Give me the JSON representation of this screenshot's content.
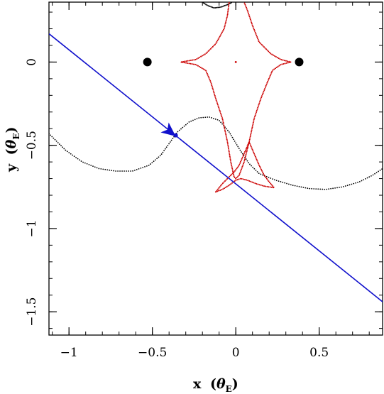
{
  "chart_data": {
    "type": "line",
    "title": "",
    "xlabel": {
      "main": "x",
      "theta": "θ",
      "sub": "E"
    },
    "ylabel": {
      "main": "y",
      "theta": "θ",
      "sub": "E"
    },
    "xlim": [
      -1.12,
      0.88
    ],
    "ylim": [
      -1.64,
      0.36
    ],
    "xticks": [
      {
        "value": -1,
        "label": "−1"
      },
      {
        "value": -0.5,
        "label": "−0.5"
      },
      {
        "value": 0,
        "label": "0"
      },
      {
        "value": 0.5,
        "label": "0.5"
      }
    ],
    "yticks": [
      {
        "value": -1.5,
        "label": "−1.5"
      },
      {
        "value": -1,
        "label": "−1"
      },
      {
        "value": -0.5,
        "label": "−0.5"
      },
      {
        "value": 0,
        "label": "0"
      }
    ],
    "x_minor_step": 0.1,
    "y_minor_step": 0.1,
    "grid": false,
    "lenses": [
      {
        "x": -0.53,
        "y": 0.0
      },
      {
        "x": 0.38,
        "y": 0.0
      }
    ],
    "caustic": {
      "color": "#cc0000",
      "central": [
        [
          -0.04,
          0.36
        ],
        [
          -0.05,
          0.28
        ],
        [
          -0.07,
          0.2
        ],
        [
          -0.12,
          0.11
        ],
        [
          -0.18,
          0.05
        ],
        [
          -0.24,
          0.015
        ],
        [
          -0.33,
          0.0
        ],
        [
          -0.24,
          -0.015
        ],
        [
          -0.18,
          -0.05
        ],
        [
          -0.15,
          -0.12
        ],
        [
          -0.12,
          -0.22
        ],
        [
          -0.08,
          -0.34
        ],
        [
          -0.05,
          -0.48
        ],
        [
          -0.03,
          -0.6
        ],
        [
          -0.01,
          -0.69
        ],
        [
          0.0,
          -0.7
        ],
        [
          0.02,
          -0.68
        ],
        [
          0.05,
          -0.6
        ],
        [
          0.08,
          -0.48
        ],
        [
          0.11,
          -0.34
        ],
        [
          0.15,
          -0.22
        ],
        [
          0.19,
          -0.12
        ],
        [
          0.22,
          -0.05
        ],
        [
          0.27,
          -0.015
        ],
        [
          0.33,
          0.0
        ],
        [
          0.27,
          0.015
        ],
        [
          0.21,
          0.05
        ],
        [
          0.14,
          0.12
        ],
        [
          0.1,
          0.22
        ],
        [
          0.07,
          0.31
        ],
        [
          0.05,
          0.36
        ]
      ],
      "lower": [
        [
          -0.12,
          -0.78
        ],
        [
          -0.08,
          -0.765
        ],
        [
          -0.04,
          -0.74
        ],
        [
          0.0,
          -0.71
        ],
        [
          0.03,
          -0.7
        ],
        [
          0.07,
          -0.71
        ],
        [
          0.12,
          -0.73
        ],
        [
          0.17,
          -0.745
        ],
        [
          0.23,
          -0.755
        ],
        [
          0.2,
          -0.72
        ],
        [
          0.17,
          -0.68
        ],
        [
          0.14,
          -0.62
        ],
        [
          0.11,
          -0.55
        ],
        [
          0.08,
          -0.48
        ],
        [
          0.05,
          -0.55
        ],
        [
          0.02,
          -0.62
        ],
        [
          -0.01,
          -0.66
        ],
        [
          -0.04,
          -0.69
        ],
        [
          -0.08,
          -0.73
        ],
        [
          -0.12,
          -0.78
        ]
      ],
      "dot": {
        "x": 0.0,
        "y": 0.0
      }
    },
    "light_curve_track": {
      "color": "#000000",
      "points": [
        [
          -1.12,
          -0.43
        ],
        [
          -1.02,
          -0.53
        ],
        [
          -0.92,
          -0.6
        ],
        [
          -0.82,
          -0.64
        ],
        [
          -0.72,
          -0.655
        ],
        [
          -0.62,
          -0.655
        ],
        [
          -0.52,
          -0.62
        ],
        [
          -0.45,
          -0.56
        ],
        [
          -0.4,
          -0.49
        ],
        [
          -0.35,
          -0.42
        ],
        [
          -0.28,
          -0.36
        ],
        [
          -0.22,
          -0.335
        ],
        [
          -0.16,
          -0.33
        ],
        [
          -0.1,
          -0.35
        ],
        [
          -0.04,
          -0.42
        ],
        [
          0.02,
          -0.52
        ],
        [
          0.08,
          -0.61
        ],
        [
          0.14,
          -0.67
        ],
        [
          0.24,
          -0.71
        ],
        [
          0.34,
          -0.74
        ],
        [
          0.44,
          -0.76
        ],
        [
          0.54,
          -0.765
        ],
        [
          0.64,
          -0.75
        ],
        [
          0.74,
          -0.72
        ],
        [
          0.82,
          -0.68
        ],
        [
          0.88,
          -0.64
        ]
      ],
      "top_arc": [
        [
          -0.2,
          0.36
        ],
        [
          -0.17,
          0.34
        ],
        [
          -0.13,
          0.325
        ],
        [
          -0.09,
          0.33
        ],
        [
          -0.05,
          0.345
        ],
        [
          -0.02,
          0.36
        ]
      ]
    },
    "source_trajectory": {
      "color": "#1010cc",
      "start": [
        -1.12,
        0.17
      ],
      "end": [
        0.88,
        -1.44
      ],
      "marker": {
        "x": -0.36,
        "y": -0.44
      },
      "arrow": {
        "x": -0.38,
        "y": -0.43
      }
    }
  }
}
